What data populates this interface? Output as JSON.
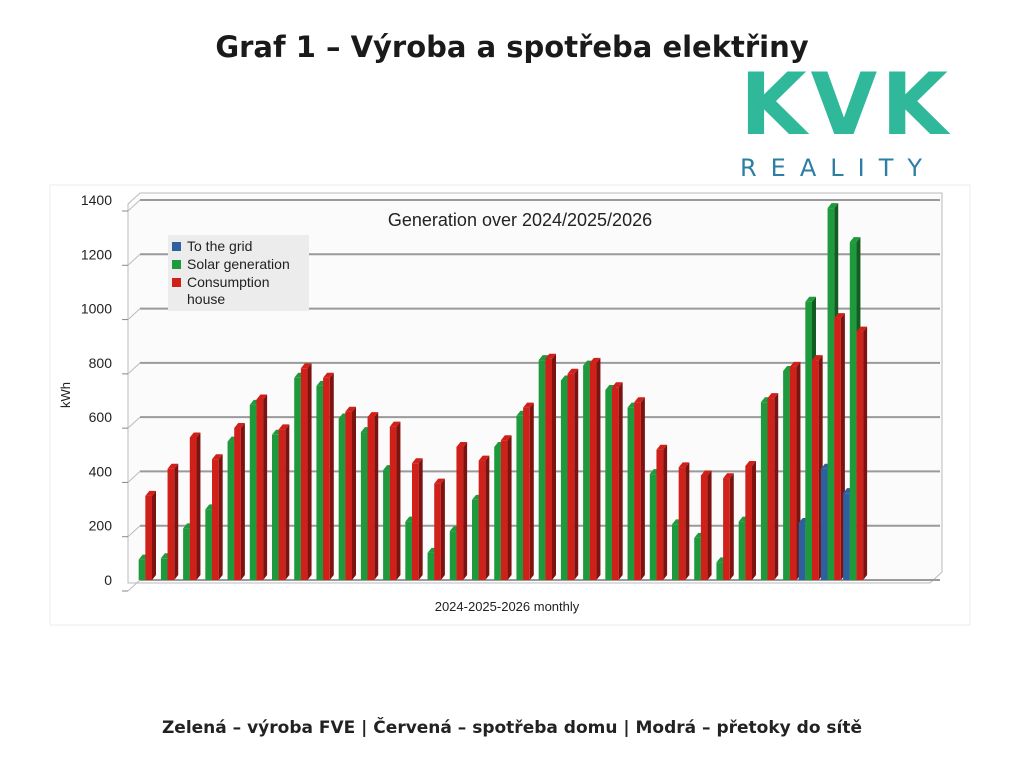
{
  "page": {
    "title": "Graf 1 – Výroba a spotřeba elektřiny",
    "logo": {
      "name": "KVK",
      "subtitle": "REALITY"
    },
    "caption": "Zelená – výroba FVE   |   Červená – spotřeba domu   |   Modrá – přetoky do sítě"
  },
  "chart_data": {
    "type": "bar",
    "title": "Generation over 2024/2025/2026",
    "x_label": "2024-2025-2026 monthly",
    "y_label": "kWh",
    "categories": [
      null,
      null,
      null,
      null,
      null,
      null,
      null,
      null,
      null,
      null,
      null,
      null,
      null,
      null,
      null,
      null,
      null,
      null,
      null,
      null,
      null,
      null,
      null,
      null,
      null,
      null,
      null,
      null,
      null,
      null,
      null,
      null,
      null,
      null,
      null,
      null
    ],
    "series": [
      {
        "name": "To the grid",
        "color": "#2e5f9e",
        "values": [
          0,
          0,
          0,
          0,
          0,
          0,
          0,
          0,
          0,
          0,
          0,
          0,
          0,
          0,
          0,
          0,
          0,
          0,
          0,
          0,
          0,
          0,
          0,
          0,
          0,
          0,
          0,
          0,
          0,
          0,
          210,
          410,
          320,
          0,
          0,
          0
        ]
      },
      {
        "name": "Solar generation",
        "color": "#1e9a3c",
        "values": [
          75,
          80,
          190,
          260,
          510,
          645,
          535,
          745,
          715,
          595,
          545,
          405,
          215,
          100,
          180,
          295,
          490,
          605,
          810,
          735,
          790,
          700,
          635,
          390,
          205,
          155,
          65,
          215,
          655,
          770,
          1025,
          1370,
          1245,
          0,
          0,
          0
        ]
      },
      {
        "name": "Consumption house",
        "color": "#d0201a",
        "values": [
          310,
          410,
          525,
          445,
          560,
          665,
          555,
          780,
          745,
          620,
          600,
          565,
          430,
          355,
          490,
          440,
          515,
          635,
          815,
          760,
          800,
          710,
          655,
          480,
          415,
          385,
          375,
          420,
          670,
          785,
          810,
          965,
          915,
          0,
          0,
          0
        ]
      }
    ],
    "ylim": [
      0,
      1400
    ],
    "yticks": [
      0,
      200,
      400,
      600,
      800,
      1000,
      1200,
      1400
    ],
    "grid": true,
    "legend": "top-left"
  }
}
